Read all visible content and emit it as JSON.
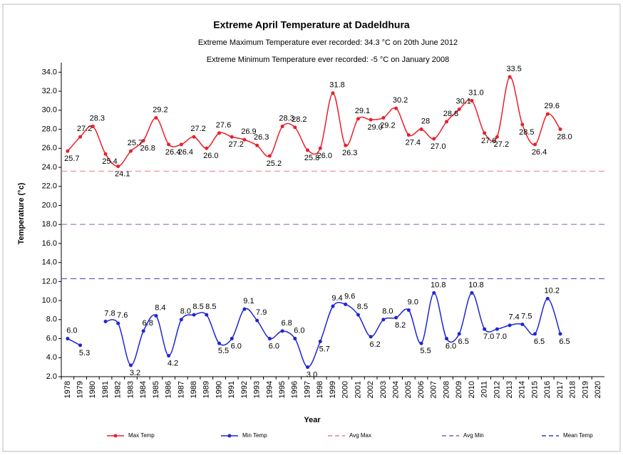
{
  "chart_data": {
    "type": "line",
    "title": "Extreme April  Temperature at Dadeldhura",
    "subtitle": "Extreme Maximum Temperature ever recorded: 34.3 °C on 20th June 2012",
    "subtitle2": "Extreme Minimum Temperature ever recorded: -5 °C on January 2008",
    "x_label": "Year",
    "y_label": "Temperature (°c)",
    "categories": [
      "1978",
      "1979",
      "1980",
      "1981",
      "1982",
      "1983",
      "1984",
      "1985",
      "1986",
      "1987",
      "1988",
      "1989",
      "1990",
      "1991",
      "1992",
      "1993",
      "1994",
      "1995",
      "1996",
      "1997",
      "1998",
      "1999",
      "2000",
      "2001",
      "2002",
      "2003",
      "2004",
      "2005",
      "2006",
      "2007",
      "2008",
      "2009",
      "2010",
      "2011",
      "2012",
      "2013",
      "2014",
      "2015",
      "2016",
      "2017",
      "2018",
      "2019",
      "2020"
    ],
    "ylim": [
      2,
      35
    ],
    "yticks": [
      {
        "value": 2,
        "label": "2.0"
      },
      {
        "value": 4,
        "label": "4.0"
      },
      {
        "value": 6,
        "label": "6.0"
      },
      {
        "value": 8,
        "label": "8.0"
      },
      {
        "value": 10,
        "label": "10.0"
      },
      {
        "value": 12,
        "label": "12.0"
      },
      {
        "value": 14,
        "label": "14.0"
      },
      {
        "value": 16,
        "label": "16.0"
      },
      {
        "value": 18,
        "label": "18.0"
      },
      {
        "value": 20,
        "label": "20.0"
      },
      {
        "value": 22,
        "label": "22.0"
      },
      {
        "value": 24,
        "label": "24.0"
      },
      {
        "value": 26,
        "label": "26.0"
      },
      {
        "value": 28,
        "label": "28.0"
      },
      {
        "value": 30,
        "label": "30.0"
      },
      {
        "value": 32,
        "label": "32.0"
      },
      {
        "value": 34,
        "label": "34.0"
      }
    ],
    "series": [
      {
        "name": "Max Temp",
        "color": "#e8202a",
        "values": [
          25.7,
          27.2,
          28.3,
          25.4,
          24.1,
          25.7,
          26.8,
          29.2,
          26.4,
          26.4,
          27.2,
          26.0,
          27.6,
          27.2,
          26.9,
          26.3,
          25.2,
          28.3,
          28.2,
          25.8,
          26.0,
          31.8,
          26.3,
          29.1,
          29.0,
          29.2,
          30.2,
          27.4,
          28,
          27.0,
          28.8,
          30.1,
          31.0,
          27.6,
          27.2,
          33.5,
          28.5,
          26.4,
          29.6,
          28.0,
          null,
          null,
          null
        ],
        "value_labels": [
          "25.7",
          "27.2",
          "28.3",
          "25.4",
          "24.1",
          "25.7",
          "26.8",
          "29.2",
          "26.4",
          "26.4",
          "27.2",
          "26.0",
          "27.6",
          "27.2",
          "26.9",
          "26.3",
          "25.2",
          "28.3",
          "28.2",
          "25.8",
          "26.0",
          "31.8",
          "26.3",
          "29.1",
          "29.0",
          "29.2",
          "30.2",
          "27.4",
          "28",
          "27.0",
          "28.8",
          "30.1",
          "31.0",
          "27.6",
          "27.2",
          "33.5",
          "28.5",
          "26.4",
          "29.6",
          "28.0",
          null,
          null,
          null
        ]
      },
      {
        "name": "Min Temp",
        "color": "#1f25d6",
        "values": [
          6.0,
          5.3,
          null,
          7.8,
          7.6,
          3.2,
          6.8,
          8.4,
          4.2,
          8.0,
          8.5,
          8.5,
          5.5,
          6.0,
          9.1,
          7.9,
          6.0,
          6.8,
          6.0,
          3.0,
          5.7,
          9.4,
          9.6,
          8.5,
          6.2,
          8.0,
          8.2,
          9.0,
          5.5,
          10.8,
          6.0,
          6.5,
          10.8,
          7.0,
          7.0,
          7.4,
          7.5,
          6.5,
          10.2,
          6.5,
          null,
          null,
          null
        ],
        "value_labels": [
          "6.0",
          "5.3",
          null,
          "7.8",
          "7.6",
          "3.2",
          "6.8",
          "8.4",
          "4.2",
          "8.0",
          "8.5",
          "8.5",
          "5.5",
          "6.0",
          "9.1",
          "7.9",
          "6.0",
          "6.8",
          "6.0",
          "3.0",
          "5.7",
          "9.4",
          "9.6",
          "8.5",
          "6.2",
          "8.0",
          "8.2",
          "9.0",
          "5.5",
          "10.8",
          "6.0",
          "6.5",
          "10.8",
          "7.0",
          "7.0",
          "7.4",
          "7.5",
          "6.5",
          "10.2",
          "6.5",
          null,
          null,
          null
        ]
      },
      {
        "name": "Avg Max",
        "color": "#f07a8a",
        "dashed": true,
        "value": 23.6
      },
      {
        "name": "Avg Min",
        "color": "#8a5ab8",
        "dashed": true,
        "value": 18.0
      },
      {
        "name": "Mean Temp",
        "color": "#3a3fb8",
        "dashed": true,
        "value": 12.3
      }
    ]
  }
}
